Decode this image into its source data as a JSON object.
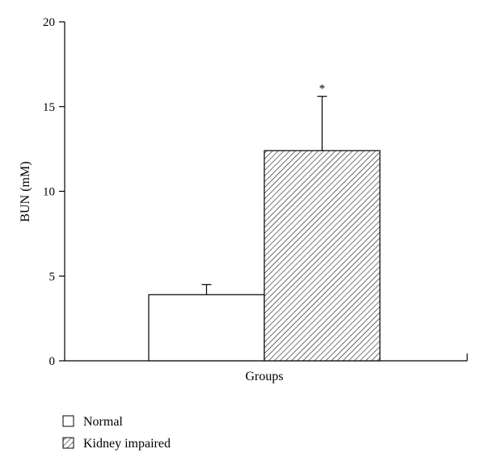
{
  "chart_data": {
    "type": "bar",
    "title": "",
    "xlabel": "Groups",
    "ylabel": "BUN (mM)",
    "ylim": [
      0,
      20
    ],
    "yticks": [
      "0",
      "5",
      "10",
      "15",
      "20"
    ],
    "grid": false,
    "legend_position": "bottom-left",
    "categories": [
      "Normal",
      "Kidney impaired"
    ],
    "series": [
      {
        "name": "Normal",
        "value": 3.9,
        "error": 0.6,
        "fill": "white",
        "annotation": ""
      },
      {
        "name": "Kidney impaired",
        "value": 12.4,
        "error": 3.2,
        "fill": "diagonal-hatch",
        "annotation": "*"
      }
    ],
    "colors": {
      "stroke": "#000000",
      "background": "#ffffff"
    }
  }
}
